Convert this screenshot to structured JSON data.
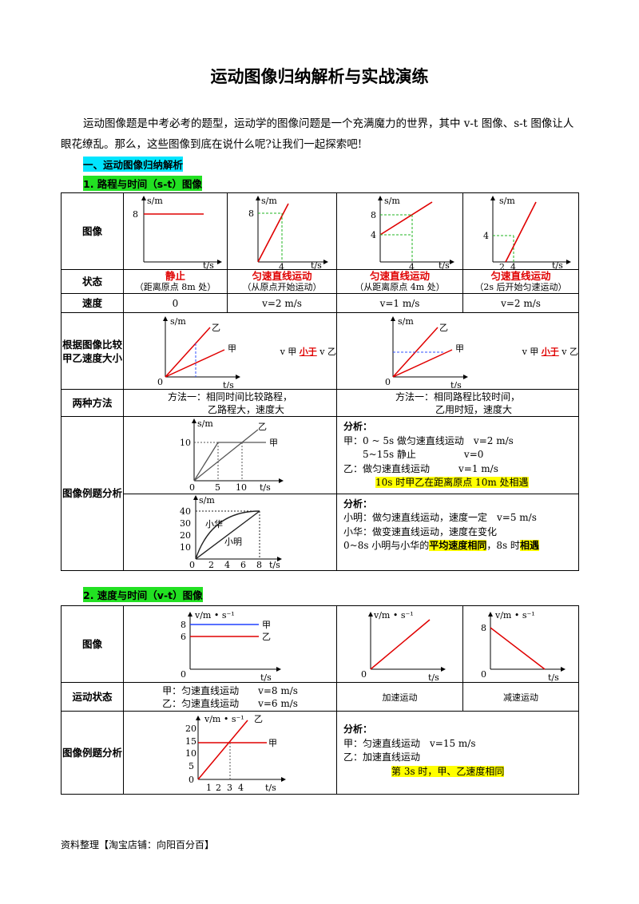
{
  "title": "运动图像归纳解析与实战演练",
  "intro": "运动图像题是中考必考的题型，运动学的图像问题是一个充满魔力的世界，其中 v-t 图像、s-t 图像让人眼花缭乱。那么，这些图像到底在说什么呢?让我们一起探索吧!",
  "section1": "一、运动图像归纳解析",
  "sub1": "1. 路程与时间（s-t）图像",
  "sub2": "2. 速度与时间（v-t）图像",
  "st": {
    "row_labels": [
      "图像",
      "状态",
      "速度",
      "根据图像比较甲乙速度大小",
      "两种方法",
      "图像例题分析"
    ],
    "states": [
      {
        "name": "静止",
        "note": "（距离原点 8m 处）"
      },
      {
        "name": "匀速直线运动",
        "note": "（从原点开始运动）"
      },
      {
        "name": "匀速直线运动",
        "note": "（从距离原点 4m 处）"
      },
      {
        "name": "匀速直线运动",
        "note": "（2s 后开始匀速运动）"
      }
    ],
    "speeds": [
      "0",
      "v=2 m/s",
      "v=1 m/s",
      "v=2 m/s"
    ],
    "compare_prefix": "v 甲",
    "compare_word": "小于",
    "compare_suffix": "v 乙",
    "method1": [
      "方法一：相同时间比较路程，",
      "乙路程大，速度大"
    ],
    "method2": [
      "方法一：相同路程比较时间，",
      "乙用时短，速度大"
    ],
    "ex1": {
      "heading": "分析：",
      "lines": [
        "甲：0 ~ 5s 做匀速直线运动　v=2 m/s",
        "5~15s 静止　　　　　v=0",
        "乙：做匀速直线运动　　　v=1 m/s"
      ],
      "highlight": "10s 时甲乙在距离原点 10m 处相遇"
    },
    "ex2": {
      "heading": "分析：",
      "lines": [
        "小明：做匀速直线运动，速度一定　v=5 m/s",
        "小华：做变速直线运动，速度在变化"
      ],
      "last_pre": "0~8s 小明与小华的",
      "last_hl1": "平均速度相同",
      "last_mid": "，8s 时",
      "last_hl2": "相遇"
    },
    "graph_labels": {
      "s": "s/m",
      "t": "t/s",
      "jia": "甲",
      "yi": "乙",
      "xiaohua": "小华",
      "xiaoming": "小明",
      "zero": "0"
    }
  },
  "vt": {
    "row_labels": [
      "图像",
      "运动状态",
      "图像例题分析"
    ],
    "state1": [
      "甲：匀速直线运动　　v=8 m/s",
      "乙：匀速直线运动　　v=6 m/s"
    ],
    "state2": "加速运动",
    "state3": "减速运动",
    "ex": {
      "heading": "分析：",
      "lines": [
        "甲：匀速直线运动　v=15 m/s",
        "乙：加速直线运动"
      ],
      "highlight": "第 3s 时，甲、乙速度相同"
    },
    "graph_labels": {
      "v": "v/m • s⁻¹",
      "t": "t/s",
      "jia": "甲",
      "yi": "乙",
      "zero": "0"
    }
  },
  "footer": "资料整理【淘宝店铺：向阳百分百】"
}
